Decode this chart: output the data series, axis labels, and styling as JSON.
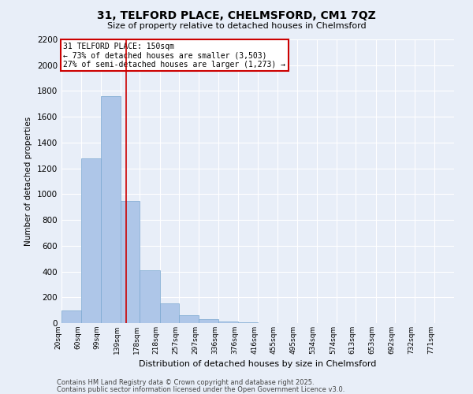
{
  "title1": "31, TELFORD PLACE, CHELMSFORD, CM1 7QZ",
  "title2": "Size of property relative to detached houses in Chelmsford",
  "xlabel": "Distribution of detached houses by size in Chelmsford",
  "ylabel": "Number of detached properties",
  "footnote1": "Contains HM Land Registry data © Crown copyright and database right 2025.",
  "footnote2": "Contains public sector information licensed under the Open Government Licence v3.0.",
  "property_size": 150,
  "annotation_title": "31 TELFORD PLACE: 150sqm",
  "annotation_line1": "← 73% of detached houses are smaller (3,503)",
  "annotation_line2": "27% of semi-detached houses are larger (1,273) →",
  "bar_edges": [
    20,
    60,
    99,
    139,
    178,
    218,
    257,
    297,
    336,
    376,
    416,
    455,
    495,
    534,
    574,
    613,
    653,
    692,
    732,
    771,
    811
  ],
  "bar_heights": [
    100,
    1280,
    1760,
    950,
    410,
    150,
    60,
    30,
    10,
    5,
    2,
    1,
    1,
    0,
    0,
    0,
    0,
    0,
    0,
    0
  ],
  "bar_color": "#aec6e8",
  "bar_edge_color": "#7aa8d0",
  "annotation_box_color": "#ffffff",
  "annotation_box_edge_color": "#cc0000",
  "vline_color": "#cc0000",
  "bg_color": "#e8eef8",
  "grid_color": "#ffffff",
  "ylim": [
    0,
    2200
  ],
  "yticks": [
    0,
    200,
    400,
    600,
    800,
    1000,
    1200,
    1400,
    1600,
    1800,
    2000,
    2200
  ]
}
